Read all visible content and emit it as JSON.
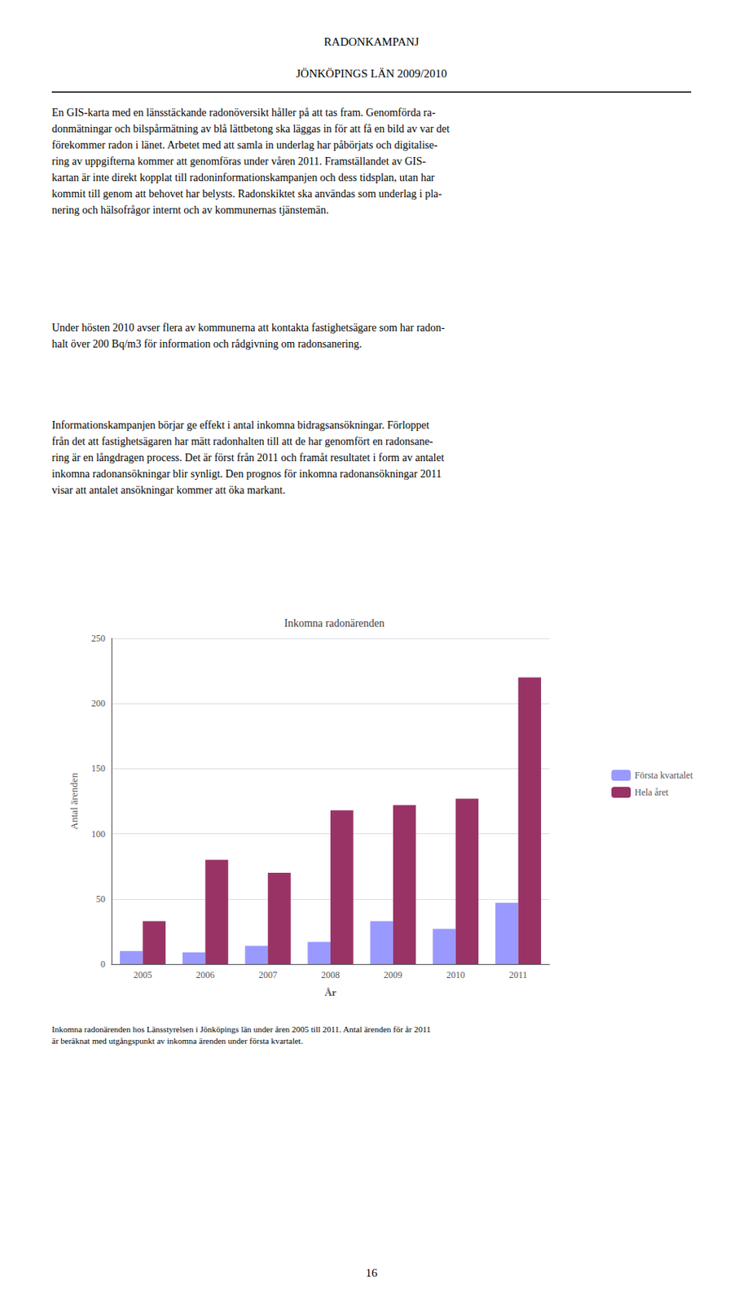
{
  "chart_data": {
    "type": "bar",
    "title": "Inkomna radonärenden",
    "xlabel": "År",
    "ylabel": "Antal ärenden",
    "categories": [
      "2005",
      "2006",
      "2007",
      "2008",
      "2009",
      "2010",
      "2011"
    ],
    "series": [
      {
        "name": "Första kvartalet",
        "color": "#9999ff",
        "values": [
          10,
          9,
          14,
          17,
          33,
          27,
          47
        ]
      },
      {
        "name": "Hela året",
        "color": "#993366",
        "values": [
          33,
          80,
          70,
          118,
          122,
          127,
          220
        ]
      }
    ],
    "ylim": [
      0,
      250
    ],
    "yticks": [
      0,
      50,
      100,
      150,
      200,
      250
    ],
    "grid": true,
    "legend": "right",
    "annotations": [
      "RADONKAMPANJ",
      "JÖNKÖPINGS LÄN 2009/2010",
      "En GIS-karta med en länsstäckande radonöversikt håller på att tas fram. Genomförda ra-\ndonmätningar och bilspårmätning av blå lättbetong ska läggas in för att få en bild av var det\nförekommer radon i länet. Arbetet med att samla in underlag har påbörjats och digitalise-\nring av uppgifterna kommer att genomföras under våren 2011. Framställandet av GIS-\nkartan är inte direkt kopplat till radoninformationskampanjen och dess tidsplan, utan har\nkommit till genom att behovet har belysts. Radonskiktet ska användas som underlag i pla-\nnering och hälsofrågor internt och av kommunernas tjänstemän.",
      "Under hösten 2010 avser flera av kommunerna att kontakta fastighetsägare som har radon-\nhalt över 200 Bq/m3 för information och rådgivning om radonsanering.",
      "Informationskampanjen börjar ge effekt i antal inkomna bidragsansökningar. Förloppet\nfrån det att fastighetsägaren har mätt radonhalten till att de har genomfört en radonsane-\nring är en långdragen process. Det är först från 2011 och framåt resultatet i form av antalet\ninkomna radonansökningar blir synligt. Den prognos för inkomna radonansökningar 2011\nvisar att antalet ansökningar kommer att öka markant.",
      "Inkomna radonärenden hos Länsstyrelsen i Jönköpings län under åren 2005 till 2011. Antal ärenden för år 2011\när beräknat med utgångspunkt av inkomna ärenden under första kvartalet.",
      "16"
    ]
  }
}
